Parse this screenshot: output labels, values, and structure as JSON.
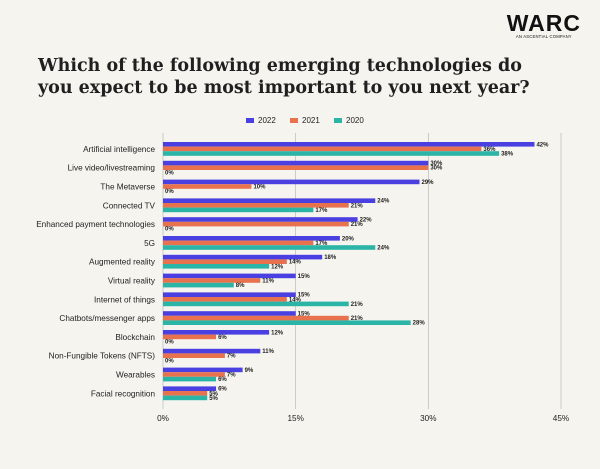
{
  "logo": {
    "name": "WARC",
    "tagline": "AN ASCENTIAL COMPANY"
  },
  "chart_data": {
    "type": "bar",
    "orientation": "horizontal",
    "title": "Which of the following emerging technologies do you expect to be most important to you next year?",
    "categories": [
      "Artificial intelligence",
      "Live video/livestreaming",
      "The Metaverse",
      "Connected TV",
      "Enhanced payment technologies",
      "5G",
      "Augmented reality",
      "Virtual reality",
      "Internet of things",
      "Chatbots/messenger apps",
      "Blockchain",
      "Non-Fungible Tokens (NFTS)",
      "Wearables",
      "Facial recognition"
    ],
    "series": [
      {
        "name": "2022",
        "color": "#4a3fe0",
        "values": [
          42,
          30,
          29,
          24,
          22,
          20,
          18,
          15,
          15,
          15,
          12,
          11,
          9,
          6
        ]
      },
      {
        "name": "2021",
        "color": "#e8724e",
        "values": [
          36,
          30,
          10,
          21,
          21,
          17,
          14,
          11,
          14,
          21,
          6,
          7,
          7,
          5
        ]
      },
      {
        "name": "2020",
        "color": "#2bb5a6",
        "values": [
          38,
          0,
          0,
          17,
          0,
          24,
          12,
          8,
          21,
          28,
          0,
          0,
          6,
          5
        ]
      }
    ],
    "xlim": [
      0,
      45
    ],
    "xticks": [
      0,
      15,
      30,
      45
    ],
    "tick_suffix": "%",
    "value_suffix": "%",
    "legend_position": "top-right",
    "grid": true
  }
}
